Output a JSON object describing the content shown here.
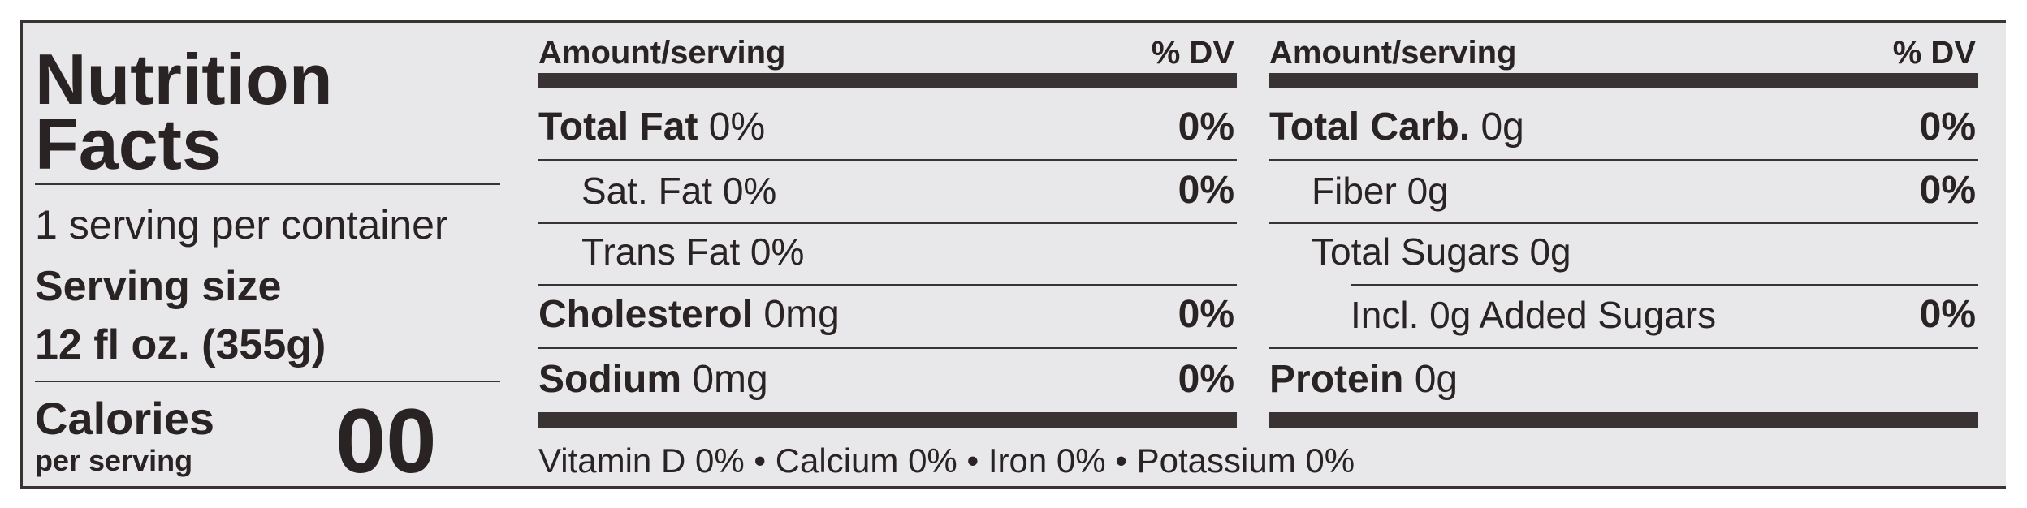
{
  "title": "Nutrition Facts",
  "title_lines": [
    "Nutrition",
    "Facts"
  ],
  "servings": "1 serving per container",
  "serving_size_label": "Serving size",
  "serving_size_value": "12 fl oz. (355g)",
  "calories_label": "Calories",
  "calories_sub": "per serving",
  "calories_value": "00",
  "columns": [
    {
      "header_amount": "Amount/serving",
      "header_dv": "% DV",
      "rows": [
        {
          "name": "Total Fat",
          "amount": "0%",
          "dv": "0%"
        },
        {
          "label": "Sat. Fat 0%",
          "dv": "0%"
        },
        {
          "label": "Trans Fat 0%"
        },
        {
          "name": "Cholesterol",
          "amount": "0mg",
          "dv": "0%"
        },
        {
          "name": "Sodium",
          "amount": "0mg",
          "dv": "0%"
        }
      ]
    },
    {
      "header_amount": "Amount/serving",
      "header_dv": "% DV",
      "rows": [
        {
          "name": "Total Carb.",
          "amount": "0g",
          "dv": "0%"
        },
        {
          "label": "Fiber 0g",
          "dv": "0%"
        },
        {
          "label": "Total Sugars 0g"
        },
        {
          "label": "Incl. 0g Added Sugars",
          "dv": "0%"
        },
        {
          "name": "Protein",
          "amount": "0g"
        }
      ]
    }
  ],
  "footer": "Vitamin D 0% • Calcium 0% • Iron 0% • Potassium 0%"
}
